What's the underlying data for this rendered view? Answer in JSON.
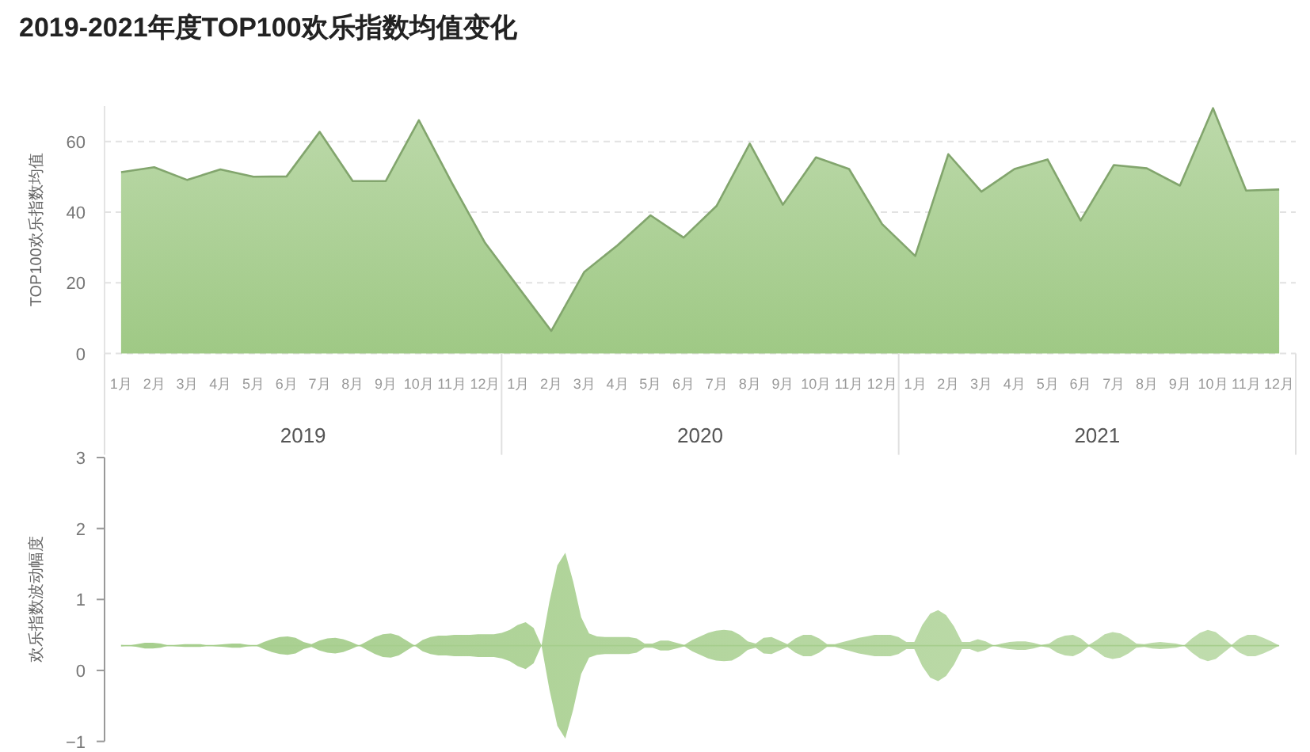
{
  "chart_data": [
    {
      "type": "area",
      "title": "2019-2021年度TOP100欢乐指数均值变化",
      "ylabel": "TOP100欢乐指数均值",
      "categories": [
        "1月",
        "2月",
        "3月",
        "4月",
        "5月",
        "6月",
        "7月",
        "8月",
        "9月",
        "10月",
        "11月",
        "12月",
        "1月",
        "2月",
        "3月",
        "4月",
        "5月",
        "6月",
        "7月",
        "8月",
        "9月",
        "10月",
        "11月",
        "12月",
        "1月",
        "2月",
        "3月",
        "4月",
        "5月",
        "6月",
        "7月",
        "8月",
        "9月",
        "10月",
        "11月",
        "12月"
      ],
      "series": [
        {
          "color": "#9fc985",
          "values": [
            51.3,
            52.7,
            49.1,
            52.1,
            50.0,
            50.1,
            62.7,
            48.8,
            48.8,
            66.0,
            48.2,
            31.3,
            18.8,
            6.4,
            23.1,
            30.6,
            39.1,
            32.8,
            41.8,
            59.4,
            42.1,
            55.5,
            52.2,
            36.6,
            27.6,
            56.4,
            45.8,
            52.2,
            54.9,
            37.6,
            53.3,
            52.4,
            47.5,
            69.4,
            46.1,
            46.4
          ]
        }
      ],
      "ylim": [
        0,
        70
      ],
      "yticks": [
        0,
        20,
        40,
        60
      ],
      "grid": "y",
      "annotations": [
        "2019",
        "2020",
        "2021"
      ]
    },
    {
      "type": "line",
      "ylabel": "欢乐指数波动幅度",
      "tick_labels": "y",
      "categories": [
        null,
        null,
        null,
        null,
        null,
        null,
        null,
        null,
        null,
        null,
        null,
        null,
        null,
        null,
        null,
        null,
        null,
        null,
        null,
        null,
        null,
        null,
        null,
        null,
        null,
        null,
        null,
        null,
        null,
        null,
        null,
        null,
        null,
        null,
        null,
        null,
        null,
        null,
        null,
        null,
        null,
        null,
        null,
        null,
        null,
        null,
        null,
        null,
        null,
        null,
        null,
        null,
        null,
        null,
        null,
        null,
        null,
        null,
        null,
        null,
        null,
        null,
        null,
        null,
        null,
        null,
        null,
        null,
        null,
        null,
        null,
        null,
        null,
        null,
        null,
        null,
        null,
        null,
        null,
        null,
        null,
        null,
        null,
        null,
        null,
        null,
        null,
        null,
        null,
        null,
        null,
        null,
        null,
        null,
        null,
        null,
        null,
        null,
        null,
        null,
        null,
        null,
        null,
        null,
        null,
        null,
        null,
        null,
        null,
        null,
        null,
        null,
        null,
        null,
        null,
        null,
        null,
        null,
        null,
        null,
        null,
        null,
        null,
        null,
        null,
        null,
        null,
        null,
        null,
        null,
        null,
        null,
        null,
        null,
        null,
        null,
        null,
        null,
        null,
        null,
        null,
        null,
        null,
        null,
        null,
        null,
        null
      ],
      "series": [
        {
          "color": "#a6ce8d",
          "values": [
            0.35,
            0.35,
            0.35,
            0.35,
            0.35,
            0.35,
            0.35,
            0.35,
            0.35,
            0.35,
            0.35,
            0.35,
            0.35,
            0.35,
            0.35,
            0.35,
            0.35,
            0.35,
            0.35,
            0.35,
            0.35,
            0.35,
            0.35,
            0.35,
            0.35,
            0.35,
            0.35,
            0.35,
            0.35,
            0.35,
            0.35,
            0.35,
            0.35,
            0.35,
            0.35,
            0.35,
            0.35,
            0.35,
            0.35,
            0.35,
            0.35,
            0.35,
            0.35,
            0.35,
            0.35,
            0.35,
            0.35,
            0.35,
            0.35,
            0.35,
            0.35,
            0.35,
            0.35,
            0.35,
            0.35,
            0.35,
            0.35,
            0.35,
            0.35,
            0.35,
            0.35,
            0.35,
            0.35,
            0.35,
            0.35,
            0.35,
            0.35,
            0.35,
            0.35,
            0.35,
            0.35,
            0.35,
            0.35,
            0.35,
            0.35,
            0.35,
            0.35,
            0.35,
            0.35,
            0.35,
            0.35,
            0.35,
            0.35,
            0.35,
            0.35,
            0.35,
            0.35,
            0.35,
            0.35,
            0.35,
            0.35,
            0.35,
            0.35,
            0.35,
            0.35,
            0.35,
            0.35,
            0.35,
            0.35,
            0.35,
            0.35,
            0.35,
            0.35,
            0.35,
            0.35,
            0.35,
            0.35,
            0.35,
            0.35,
            0.35,
            0.35,
            0.35,
            0.35,
            0.35,
            0.35,
            0.35,
            0.35,
            0.35,
            0.35,
            0.35,
            0.35,
            0.35,
            0.35,
            0.35,
            0.35,
            0.35,
            0.35,
            0.35,
            0.35,
            0.35,
            0.35,
            0.35,
            0.35,
            0.35,
            0.35,
            0.35,
            0.35,
            0.35,
            0.35,
            0.35,
            0.35,
            0.35,
            0.35,
            0.35,
            0.35,
            0.35,
            0.35
          ],
          "upper": [
            0.36,
            0.35,
            0.37,
            0.39,
            0.39,
            0.38,
            0.35,
            0.36,
            0.37,
            0.37,
            0.37,
            0.35,
            0.36,
            0.37,
            0.38,
            0.38,
            0.36,
            0.35,
            0.4,
            0.44,
            0.47,
            0.48,
            0.46,
            0.4,
            0.37,
            0.42,
            0.45,
            0.46,
            0.44,
            0.4,
            0.35,
            0.41,
            0.47,
            0.51,
            0.52,
            0.49,
            0.42,
            0.35,
            0.43,
            0.47,
            0.49,
            0.49,
            0.5,
            0.5,
            0.5,
            0.51,
            0.51,
            0.51,
            0.53,
            0.57,
            0.64,
            0.68,
            0.6,
            0.35,
            0.97,
            1.48,
            1.66,
            1.25,
            0.75,
            0.52,
            0.48,
            0.47,
            0.47,
            0.47,
            0.47,
            0.45,
            0.38,
            0.38,
            0.42,
            0.42,
            0.39,
            0.36,
            0.43,
            0.48,
            0.53,
            0.56,
            0.57,
            0.56,
            0.5,
            0.41,
            0.38,
            0.46,
            0.47,
            0.42,
            0.37,
            0.45,
            0.5,
            0.5,
            0.45,
            0.37,
            0.37,
            0.4,
            0.43,
            0.46,
            0.48,
            0.5,
            0.5,
            0.5,
            0.47,
            0.4,
            0.4,
            0.64,
            0.8,
            0.85,
            0.78,
            0.62,
            0.4,
            0.4,
            0.44,
            0.41,
            0.35,
            0.38,
            0.4,
            0.41,
            0.41,
            0.39,
            0.36,
            0.38,
            0.45,
            0.49,
            0.5,
            0.45,
            0.36,
            0.43,
            0.51,
            0.54,
            0.52,
            0.46,
            0.38,
            0.37,
            0.39,
            0.4,
            0.39,
            0.38,
            0.35,
            0.45,
            0.53,
            0.57,
            0.54,
            0.45,
            0.36,
            0.45,
            0.5,
            0.5,
            0.46,
            0.41,
            0.35
          ],
          "lower": [
            0.34,
            0.35,
            0.33,
            0.31,
            0.31,
            0.32,
            0.35,
            0.34,
            0.33,
            0.33,
            0.33,
            0.35,
            0.34,
            0.33,
            0.32,
            0.32,
            0.34,
            0.35,
            0.3,
            0.26,
            0.23,
            0.22,
            0.24,
            0.3,
            0.33,
            0.28,
            0.25,
            0.24,
            0.26,
            0.3,
            0.35,
            0.29,
            0.23,
            0.19,
            0.18,
            0.21,
            0.28,
            0.35,
            0.27,
            0.23,
            0.21,
            0.21,
            0.2,
            0.2,
            0.2,
            0.19,
            0.19,
            0.19,
            0.17,
            0.13,
            0.06,
            0.02,
            0.1,
            0.35,
            -0.27,
            -0.78,
            -0.96,
            -0.55,
            -0.05,
            0.18,
            0.22,
            0.23,
            0.23,
            0.23,
            0.23,
            0.25,
            0.32,
            0.32,
            0.28,
            0.28,
            0.31,
            0.34,
            0.27,
            0.22,
            0.17,
            0.14,
            0.13,
            0.14,
            0.2,
            0.29,
            0.32,
            0.24,
            0.23,
            0.28,
            0.33,
            0.25,
            0.2,
            0.2,
            0.25,
            0.33,
            0.33,
            0.3,
            0.27,
            0.24,
            0.22,
            0.2,
            0.2,
            0.2,
            0.23,
            0.3,
            0.3,
            0.06,
            -0.1,
            -0.15,
            -0.08,
            0.08,
            0.3,
            0.3,
            0.26,
            0.29,
            0.35,
            0.32,
            0.3,
            0.29,
            0.29,
            0.31,
            0.34,
            0.32,
            0.25,
            0.21,
            0.2,
            0.25,
            0.34,
            0.27,
            0.19,
            0.16,
            0.18,
            0.24,
            0.32,
            0.33,
            0.31,
            0.3,
            0.31,
            0.32,
            0.35,
            0.25,
            0.17,
            0.13,
            0.16,
            0.25,
            0.34,
            0.25,
            0.2,
            0.2,
            0.24,
            0.29,
            0.35
          ]
        }
      ],
      "ylim": [
        -1,
        3
      ],
      "yticks": [
        {
          "value": -1,
          "label": "−1"
        },
        0,
        1,
        2,
        3
      ]
    }
  ]
}
